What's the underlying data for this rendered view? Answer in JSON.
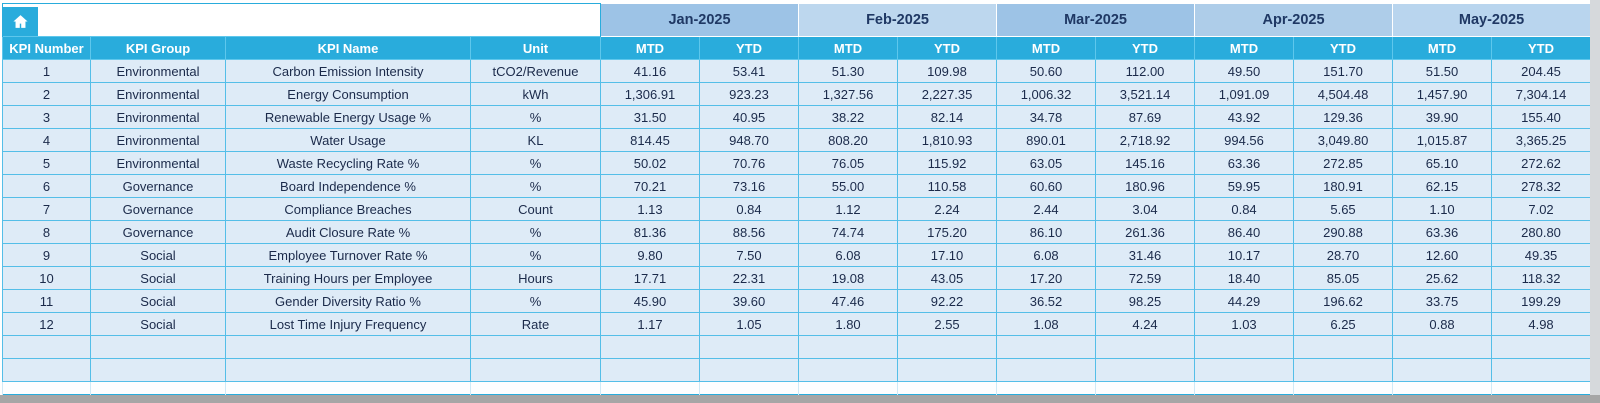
{
  "corner": {
    "home_icon": "home"
  },
  "columns": [
    "KPI Number",
    "KPI Group",
    "KPI Name",
    "Unit"
  ],
  "sub_headers": [
    "MTD",
    "YTD"
  ],
  "months": [
    {
      "label": "Jan-2025",
      "color": "#9DC3E6"
    },
    {
      "label": "Feb-2025",
      "color": "#BDD7EE"
    },
    {
      "label": "Mar-2025",
      "color": "#9DC3E6"
    },
    {
      "label": "Apr-2025",
      "color": "#AECDE9"
    },
    {
      "label": "May-2025",
      "color": "#B9D5EE"
    }
  ],
  "colors": {
    "header_teal": "#29ACDC",
    "row_background": "#DEEBF7",
    "grid_line": "#54BEE8",
    "month_text": "#1F3864"
  },
  "rows": [
    {
      "number": "1",
      "group": "Environmental",
      "name": "Carbon Emission Intensity",
      "unit": "tCO2/Revenue",
      "values": [
        "41.16",
        "53.41",
        "51.30",
        "109.98",
        "50.60",
        "112.00",
        "49.50",
        "151.70",
        "51.50",
        "204.45"
      ]
    },
    {
      "number": "2",
      "group": "Environmental",
      "name": "Energy Consumption",
      "unit": "kWh",
      "values": [
        "1,306.91",
        "923.23",
        "1,327.56",
        "2,227.35",
        "1,006.32",
        "3,521.14",
        "1,091.09",
        "4,504.48",
        "1,457.90",
        "7,304.14"
      ]
    },
    {
      "number": "3",
      "group": "Environmental",
      "name": "Renewable Energy Usage %",
      "unit": "%",
      "values": [
        "31.50",
        "40.95",
        "38.22",
        "82.14",
        "34.78",
        "87.69",
        "43.92",
        "129.36",
        "39.90",
        "155.40"
      ]
    },
    {
      "number": "4",
      "group": "Environmental",
      "name": "Water Usage",
      "unit": "KL",
      "values": [
        "814.45",
        "948.70",
        "808.20",
        "1,810.93",
        "890.01",
        "2,718.92",
        "994.56",
        "3,049.80",
        "1,015.87",
        "3,365.25"
      ]
    },
    {
      "number": "5",
      "group": "Environmental",
      "name": "Waste Recycling Rate %",
      "unit": "%",
      "values": [
        "50.02",
        "70.76",
        "76.05",
        "115.92",
        "63.05",
        "145.16",
        "63.36",
        "272.85",
        "65.10",
        "272.62"
      ]
    },
    {
      "number": "6",
      "group": "Governance",
      "name": "Board Independence %",
      "unit": "%",
      "values": [
        "70.21",
        "73.16",
        "55.00",
        "110.58",
        "60.60",
        "180.96",
        "59.95",
        "180.91",
        "62.15",
        "278.32"
      ]
    },
    {
      "number": "7",
      "group": "Governance",
      "name": "Compliance Breaches",
      "unit": "Count",
      "values": [
        "1.13",
        "0.84",
        "1.12",
        "2.24",
        "2.44",
        "3.04",
        "0.84",
        "5.65",
        "1.10",
        "7.02"
      ]
    },
    {
      "number": "8",
      "group": "Governance",
      "name": "Audit Closure Rate %",
      "unit": "%",
      "values": [
        "81.36",
        "88.56",
        "74.74",
        "175.20",
        "86.10",
        "261.36",
        "86.40",
        "290.88",
        "63.36",
        "280.80"
      ]
    },
    {
      "number": "9",
      "group": "Social",
      "name": "Employee Turnover Rate %",
      "unit": "%",
      "values": [
        "9.80",
        "7.50",
        "6.08",
        "17.10",
        "6.08",
        "31.46",
        "10.17",
        "28.70",
        "12.60",
        "49.35"
      ]
    },
    {
      "number": "10",
      "group": "Social",
      "name": "Training Hours per Employee",
      "unit": "Hours",
      "values": [
        "17.71",
        "22.31",
        "19.08",
        "43.05",
        "17.20",
        "72.59",
        "18.40",
        "85.05",
        "25.62",
        "118.32"
      ]
    },
    {
      "number": "11",
      "group": "Social",
      "name": "Gender Diversity Ratio %",
      "unit": "%",
      "values": [
        "45.90",
        "39.60",
        "47.46",
        "92.22",
        "36.52",
        "98.25",
        "44.29",
        "196.62",
        "33.75",
        "199.29"
      ]
    },
    {
      "number": "12",
      "group": "Social",
      "name": "Lost Time Injury Frequency",
      "unit": "Rate",
      "values": [
        "1.17",
        "1.05",
        "1.80",
        "2.55",
        "1.08",
        "4.24",
        "1.03",
        "6.25",
        "0.88",
        "4.98"
      ]
    }
  ],
  "empty_rows": 2
}
